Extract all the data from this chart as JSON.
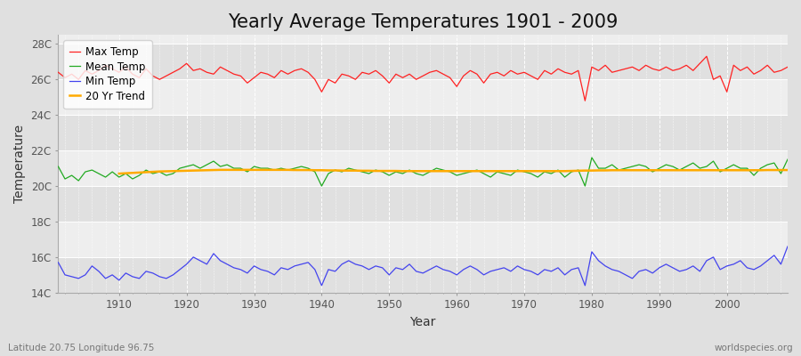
{
  "title": "Yearly Average Temperatures 1901 - 2009",
  "xlabel": "Year",
  "ylabel": "Temperature",
  "lat_lon_label": "Latitude 20.75 Longitude 96.75",
  "worldspecies_label": "worldspecies.org",
  "years": [
    1901,
    1902,
    1903,
    1904,
    1905,
    1906,
    1907,
    1908,
    1909,
    1910,
    1911,
    1912,
    1913,
    1914,
    1915,
    1916,
    1917,
    1918,
    1919,
    1920,
    1921,
    1922,
    1923,
    1924,
    1925,
    1926,
    1927,
    1928,
    1929,
    1930,
    1931,
    1932,
    1933,
    1934,
    1935,
    1936,
    1937,
    1938,
    1939,
    1940,
    1941,
    1942,
    1943,
    1944,
    1945,
    1946,
    1947,
    1948,
    1949,
    1950,
    1951,
    1952,
    1953,
    1954,
    1955,
    1956,
    1957,
    1958,
    1959,
    1960,
    1961,
    1962,
    1963,
    1964,
    1965,
    1966,
    1967,
    1968,
    1969,
    1970,
    1971,
    1972,
    1973,
    1974,
    1975,
    1976,
    1977,
    1978,
    1979,
    1980,
    1981,
    1982,
    1983,
    1984,
    1985,
    1986,
    1987,
    1988,
    1989,
    1990,
    1991,
    1992,
    1993,
    1994,
    1995,
    1996,
    1997,
    1998,
    1999,
    2000,
    2001,
    2002,
    2003,
    2004,
    2005,
    2006,
    2007,
    2008,
    2009
  ],
  "max_temp": [
    26.4,
    26.1,
    26.3,
    26.0,
    26.5,
    26.3,
    26.5,
    26.8,
    26.6,
    26.4,
    26.7,
    26.3,
    26.1,
    26.6,
    26.2,
    26.0,
    26.2,
    26.4,
    26.6,
    26.9,
    26.5,
    26.6,
    26.4,
    26.3,
    26.7,
    26.5,
    26.3,
    26.2,
    25.8,
    26.1,
    26.4,
    26.3,
    26.1,
    26.5,
    26.3,
    26.5,
    26.6,
    26.4,
    26.0,
    25.3,
    26.0,
    25.8,
    26.3,
    26.2,
    26.0,
    26.4,
    26.3,
    26.5,
    26.2,
    25.8,
    26.3,
    26.1,
    26.3,
    26.0,
    26.2,
    26.4,
    26.5,
    26.3,
    26.1,
    25.6,
    26.2,
    26.5,
    26.3,
    25.8,
    26.3,
    26.4,
    26.2,
    26.5,
    26.3,
    26.4,
    26.2,
    26.0,
    26.5,
    26.3,
    26.6,
    26.4,
    26.3,
    26.5,
    24.8,
    26.7,
    26.5,
    26.8,
    26.4,
    26.5,
    26.6,
    26.7,
    26.5,
    26.8,
    26.6,
    26.5,
    26.7,
    26.5,
    26.6,
    26.8,
    26.5,
    26.9,
    27.3,
    26.0,
    26.2,
    25.3,
    26.8,
    26.5,
    26.7,
    26.3,
    26.5,
    26.8,
    26.4,
    26.5,
    26.7
  ],
  "mean_temp": [
    21.1,
    20.4,
    20.6,
    20.3,
    20.8,
    20.9,
    20.7,
    20.5,
    20.8,
    20.5,
    20.7,
    20.4,
    20.6,
    20.9,
    20.7,
    20.8,
    20.6,
    20.7,
    21.0,
    21.1,
    21.2,
    21.0,
    21.2,
    21.4,
    21.1,
    21.2,
    21.0,
    21.0,
    20.8,
    21.1,
    21.0,
    21.0,
    20.9,
    21.0,
    20.9,
    21.0,
    21.1,
    21.0,
    20.8,
    20.0,
    20.7,
    20.9,
    20.8,
    21.0,
    20.9,
    20.8,
    20.7,
    20.9,
    20.8,
    20.6,
    20.8,
    20.7,
    20.9,
    20.7,
    20.6,
    20.8,
    21.0,
    20.9,
    20.8,
    20.6,
    20.7,
    20.8,
    20.9,
    20.7,
    20.5,
    20.8,
    20.7,
    20.6,
    20.9,
    20.8,
    20.7,
    20.5,
    20.8,
    20.7,
    20.9,
    20.5,
    20.8,
    20.9,
    20.0,
    21.6,
    21.0,
    21.0,
    21.2,
    20.9,
    21.0,
    21.1,
    21.2,
    21.1,
    20.8,
    21.0,
    21.2,
    21.1,
    20.9,
    21.1,
    21.3,
    21.0,
    21.1,
    21.4,
    20.8,
    21.0,
    21.2,
    21.0,
    21.0,
    20.6,
    21.0,
    21.2,
    21.3,
    20.7,
    21.5
  ],
  "min_temp": [
    15.7,
    15.0,
    14.9,
    14.8,
    15.0,
    15.5,
    15.2,
    14.8,
    15.0,
    14.7,
    15.1,
    14.9,
    14.8,
    15.2,
    15.1,
    14.9,
    14.8,
    15.0,
    15.3,
    15.6,
    16.0,
    15.8,
    15.6,
    16.2,
    15.8,
    15.6,
    15.4,
    15.3,
    15.1,
    15.5,
    15.3,
    15.2,
    15.0,
    15.4,
    15.3,
    15.5,
    15.6,
    15.7,
    15.3,
    14.4,
    15.3,
    15.2,
    15.6,
    15.8,
    15.6,
    15.5,
    15.3,
    15.5,
    15.4,
    15.0,
    15.4,
    15.3,
    15.6,
    15.2,
    15.1,
    15.3,
    15.5,
    15.3,
    15.2,
    15.0,
    15.3,
    15.5,
    15.3,
    15.0,
    15.2,
    15.3,
    15.4,
    15.2,
    15.5,
    15.3,
    15.2,
    15.0,
    15.3,
    15.2,
    15.4,
    15.0,
    15.3,
    15.4,
    14.4,
    16.3,
    15.8,
    15.5,
    15.3,
    15.2,
    15.0,
    14.8,
    15.2,
    15.3,
    15.1,
    15.4,
    15.6,
    15.4,
    15.2,
    15.3,
    15.5,
    15.2,
    15.8,
    16.0,
    15.3,
    15.5,
    15.6,
    15.8,
    15.4,
    15.3,
    15.5,
    15.8,
    16.1,
    15.6,
    16.6
  ],
  "trend_years": [
    1910,
    1911,
    1912,
    1913,
    1914,
    1915,
    1916,
    1917,
    1918,
    1919,
    1920,
    1921,
    1922,
    1923,
    1924,
    1925,
    1926,
    1927,
    1928,
    1929,
    1930,
    1931,
    1932,
    1933,
    1934,
    1935,
    1936,
    1937,
    1938,
    1939,
    1940,
    1941,
    1942,
    1943,
    1944,
    1945,
    1946,
    1947,
    1948,
    1949,
    1950,
    1951,
    1952,
    1953,
    1954,
    1955,
    1956,
    1957,
    1958,
    1959,
    1960,
    1961,
    1962,
    1963,
    1964,
    1965,
    1966,
    1967,
    1968,
    1969,
    1970,
    1971,
    1972,
    1973,
    1974,
    1975,
    1976,
    1977,
    1978,
    1979,
    1980,
    1981,
    1982,
    1983,
    1984,
    1985,
    1986,
    1987,
    1988,
    1989,
    1990,
    1991,
    1992,
    1993,
    1994,
    1995,
    1996,
    1997,
    1998,
    1999,
    2000,
    2001,
    2002,
    2003,
    2004,
    2005,
    2006,
    2007,
    2008,
    2009
  ],
  "trend_values": [
    20.7,
    20.72,
    20.74,
    20.76,
    20.78,
    20.8,
    20.82,
    20.83,
    20.84,
    20.85,
    20.86,
    20.87,
    20.88,
    20.89,
    20.9,
    20.91,
    20.91,
    20.91,
    20.91,
    20.91,
    20.91,
    20.91,
    20.91,
    20.91,
    20.91,
    20.91,
    20.9,
    20.9,
    20.9,
    20.89,
    20.89,
    20.88,
    20.88,
    20.87,
    20.87,
    20.87,
    20.86,
    20.86,
    20.85,
    20.85,
    20.85,
    20.85,
    20.84,
    20.84,
    20.84,
    20.84,
    20.84,
    20.84,
    20.84,
    20.84,
    20.84,
    20.84,
    20.84,
    20.84,
    20.84,
    20.84,
    20.84,
    20.84,
    20.84,
    20.84,
    20.84,
    20.84,
    20.84,
    20.84,
    20.84,
    20.84,
    20.84,
    20.85,
    20.86,
    20.87,
    20.87,
    20.88,
    20.88,
    20.89,
    20.89,
    20.89,
    20.89,
    20.89,
    20.89,
    20.89,
    20.89,
    20.89,
    20.89,
    20.89,
    20.89,
    20.89,
    20.89,
    20.89,
    20.89,
    20.89,
    20.89,
    20.89,
    20.89,
    20.89,
    20.89,
    20.89,
    20.9,
    20.9,
    20.9,
    20.9
  ],
  "max_color": "#ff2222",
  "mean_color": "#22aa22",
  "min_color": "#4444ee",
  "trend_color": "#ffaa00",
  "fig_bg_color": "#e0e0e0",
  "plot_bg_color_light": "#eeeeee",
  "plot_bg_color_dark": "#e0e0e0",
  "grid_color": "#ffffff",
  "ylim": [
    14,
    28.5
  ],
  "yticks": [
    14,
    16,
    18,
    20,
    22,
    24,
    26,
    28
  ],
  "ytick_labels": [
    "14C",
    "16C",
    "18C",
    "20C",
    "22C",
    "24C",
    "26C",
    "28C"
  ],
  "xlim": [
    1901,
    2009
  ],
  "title_fontsize": 15,
  "axis_label_fontsize": 10,
  "tick_fontsize": 8.5,
  "legend_fontsize": 8.5
}
